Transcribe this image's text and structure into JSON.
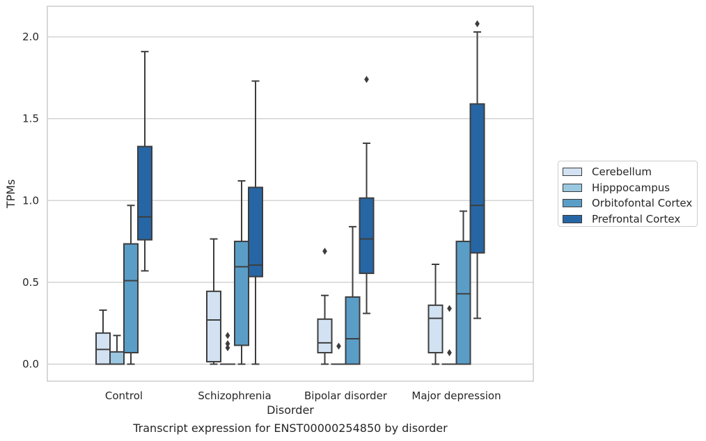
{
  "chart_data": {
    "type": "box",
    "xlabel": "Disorder",
    "ylabel": "TPMs",
    "caption": "Transcript expression for ENST00000254850 by disorder",
    "categories": [
      "Control",
      "Schizophrenia",
      "Bipolar disorder",
      "Major depression"
    ],
    "ylim": [
      -0.1,
      2.2
    ],
    "yticks": [
      0.0,
      0.5,
      1.0,
      1.5,
      2.0
    ],
    "ytick_labels": [
      "0.0",
      "0.5",
      "1.0",
      "1.5",
      "2.0"
    ],
    "grid": true,
    "legend_position": "right",
    "series": [
      {
        "name": "Cerebellum",
        "color": "#d2e2f2",
        "boxes": [
          {
            "whislo": 0.0,
            "q1": 0.0,
            "med": 0.09,
            "q3": 0.19,
            "whishi": 0.33,
            "fliers": []
          },
          {
            "whislo": 0.0,
            "q1": 0.015,
            "med": 0.27,
            "q3": 0.445,
            "whishi": 0.765,
            "fliers": []
          },
          {
            "whislo": 0.0,
            "q1": 0.07,
            "med": 0.13,
            "q3": 0.275,
            "whishi": 0.42,
            "fliers": [
              0.69
            ]
          },
          {
            "whislo": 0.0,
            "q1": 0.07,
            "med": 0.28,
            "q3": 0.36,
            "whishi": 0.61,
            "fliers": []
          }
        ]
      },
      {
        "name": "Hipppocampus",
        "color": "#9ac8e0",
        "boxes": [
          {
            "whislo": 0.0,
            "q1": 0.0,
            "med": 0.0,
            "q3": 0.075,
            "whishi": 0.175,
            "fliers": []
          },
          {
            "whislo": 0.0,
            "q1": 0.0,
            "med": 0.0,
            "q3": 0.0,
            "whishi": 0.0,
            "fliers": [
              0.1,
              0.125,
              0.175
            ]
          },
          {
            "whislo": 0.0,
            "q1": 0.0,
            "med": 0.0,
            "q3": 0.0,
            "whishi": 0.0,
            "fliers": [
              0.11
            ]
          },
          {
            "whislo": 0.0,
            "q1": 0.0,
            "med": 0.0,
            "q3": 0.0,
            "whishi": 0.0,
            "fliers": [
              0.07,
              0.34
            ]
          }
        ]
      },
      {
        "name": "Orbitofontal Cortex",
        "color": "#5a9ec8",
        "boxes": [
          {
            "whislo": 0.0,
            "q1": 0.07,
            "med": 0.51,
            "q3": 0.735,
            "whishi": 0.97,
            "fliers": []
          },
          {
            "whislo": 0.0,
            "q1": 0.115,
            "med": 0.595,
            "q3": 0.75,
            "whishi": 1.12,
            "fliers": []
          },
          {
            "whislo": 0.0,
            "q1": 0.0,
            "med": 0.155,
            "q3": 0.41,
            "whishi": 0.84,
            "fliers": []
          },
          {
            "whislo": 0.0,
            "q1": 0.0,
            "med": 0.43,
            "q3": 0.75,
            "whishi": 0.935,
            "fliers": []
          }
        ]
      },
      {
        "name": "Prefrontal Cortex",
        "color": "#2766a5",
        "boxes": [
          {
            "whislo": 0.57,
            "q1": 0.76,
            "med": 0.9,
            "q3": 1.33,
            "whishi": 1.91,
            "fliers": []
          },
          {
            "whislo": 0.0,
            "q1": 0.535,
            "med": 0.605,
            "q3": 1.08,
            "whishi": 1.73,
            "fliers": []
          },
          {
            "whislo": 0.31,
            "q1": 0.555,
            "med": 0.765,
            "q3": 1.015,
            "whishi": 1.35,
            "fliers": [
              1.74
            ]
          },
          {
            "whislo": 0.28,
            "q1": 0.68,
            "med": 0.97,
            "q3": 1.59,
            "whishi": 2.03,
            "fliers": [
              2.08
            ]
          }
        ]
      }
    ]
  }
}
